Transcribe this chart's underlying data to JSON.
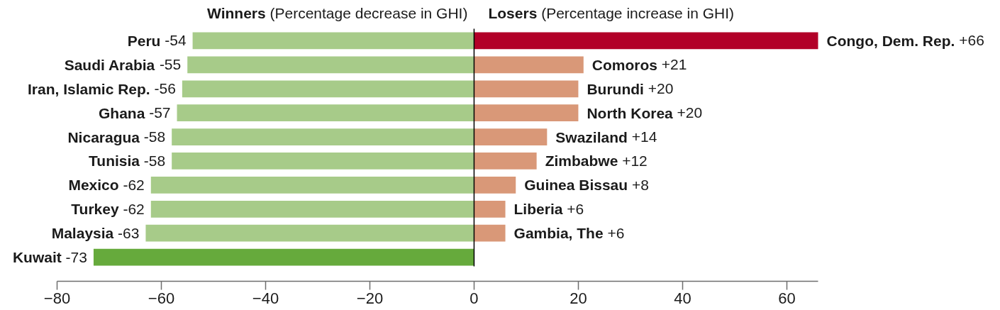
{
  "chart_data": {
    "type": "bar",
    "orientation": "horizontal",
    "stacked": true,
    "categories": [
      null,
      null,
      null,
      null,
      null,
      null,
      null,
      null,
      null,
      null
    ],
    "series": [
      {
        "name": "Winners (Percentage decrease in GHI)",
        "values": [
          -54,
          -55,
          -56,
          -57,
          -58,
          -58,
          -62,
          -62,
          -63,
          -73
        ],
        "colors": [
          "#a7cb89",
          "#a7cb89",
          "#a7cb89",
          "#a7cb89",
          "#a7cb89",
          "#a7cb89",
          "#a7cb89",
          "#a7cb89",
          "#a7cb89",
          "#66aa3c"
        ],
        "value_labels": [
          "Peru -54",
          "Saudi Arabia -55",
          "Iran, Islamic Rep. -56",
          "Ghana -57",
          "Nicaragua -58",
          "Tunisia -58",
          "Mexico -62",
          "Turkey -62",
          "Malaysia -63",
          "Kuwait -73"
        ]
      },
      {
        "name": "Losers (Percentage increase in GHI)",
        "values": [
          66,
          21,
          20,
          20,
          14,
          12,
          8,
          6,
          6,
          null
        ],
        "colors": [
          "#b20028",
          "#d99878",
          "#d99878",
          "#d99878",
          "#d99878",
          "#d99878",
          "#d99878",
          "#d99878",
          "#d99878",
          null
        ],
        "value_labels": [
          "Congo, Dem. Rep. +66",
          "Comoros +21",
          "Burundi +20",
          "North Korea +20",
          "Swaziland +14",
          "Zimbabwe +12",
          "Guinea Bissau +8",
          "Liberia +6",
          "Gambia, The +6",
          null
        ]
      }
    ],
    "xlim": [
      -80,
      66
    ],
    "xticks": [
      -80,
      -60,
      -40,
      -20,
      0,
      20,
      40,
      60
    ],
    "ref_lines": [
      {
        "axis": "x",
        "value": 0,
        "color": "#000000"
      }
    ]
  }
}
